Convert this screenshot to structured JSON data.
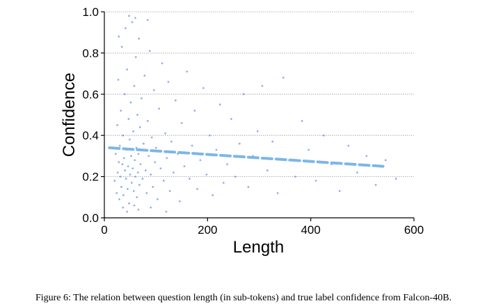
{
  "caption": "Figure 6: The relation between question length (in sub-tokens) and true label confidence from Falcon-40B.",
  "chart_data": {
    "type": "scatter",
    "title": "",
    "xlabel": "Length",
    "ylabel": "Confidence",
    "xlim": [
      0,
      600
    ],
    "ylim": [
      0,
      1.0
    ],
    "xticks": [
      0,
      200,
      400,
      600
    ],
    "xtick_labels": [
      "0",
      "200",
      "400",
      "600"
    ],
    "yticks": [
      0,
      0.2,
      0.4,
      0.6,
      0.8,
      1.0
    ],
    "ytick_labels": [
      "0.0",
      "0.2",
      "0.4",
      "0.6",
      "0.8",
      "1.0"
    ],
    "grid": "horizontal dotted",
    "point_color": "#3a6fd8",
    "trend_color": "#7db6e6",
    "trend_line": {
      "style": "dashed",
      "x": [
        10,
        540
      ],
      "y": [
        0.34,
        0.25
      ]
    },
    "points": [
      [
        20,
        0.18
      ],
      [
        22,
        0.31
      ],
      [
        24,
        0.12
      ],
      [
        25,
        0.45
      ],
      [
        26,
        0.22
      ],
      [
        27,
        0.67
      ],
      [
        28,
        0.27
      ],
      [
        29,
        0.09
      ],
      [
        30,
        0.35
      ],
      [
        31,
        0.2
      ],
      [
        32,
        0.52
      ],
      [
        33,
        0.15
      ],
      [
        34,
        0.83
      ],
      [
        35,
        0.26
      ],
      [
        36,
        0.4
      ],
      [
        37,
        0.11
      ],
      [
        38,
        0.29
      ],
      [
        39,
        0.6
      ],
      [
        40,
        0.23
      ],
      [
        41,
        0.92
      ],
      [
        42,
        0.19
      ],
      [
        43,
        0.33
      ],
      [
        44,
        0.72
      ],
      [
        45,
        0.14
      ],
      [
        46,
        0.25
      ],
      [
        47,
        0.48
      ],
      [
        48,
        0.07
      ],
      [
        49,
        0.38
      ],
      [
        50,
        0.21
      ],
      [
        51,
        0.56
      ],
      [
        52,
        0.3
      ],
      [
        53,
        0.17
      ],
      [
        54,
        0.95
      ],
      [
        55,
        0.24
      ],
      [
        56,
        0.42
      ],
      [
        57,
        0.13
      ],
      [
        58,
        0.64
      ],
      [
        59,
        0.28
      ],
      [
        60,
        0.2
      ],
      [
        61,
        0.78
      ],
      [
        62,
        0.34
      ],
      [
        63,
        0.1
      ],
      [
        64,
        0.5
      ],
      [
        65,
        0.22
      ],
      [
        66,
        0.31
      ],
      [
        67,
        0.87
      ],
      [
        68,
        0.16
      ],
      [
        69,
        0.44
      ],
      [
        70,
        0.26
      ],
      [
        72,
        0.58
      ],
      [
        74,
        0.19
      ],
      [
        76,
        0.36
      ],
      [
        78,
        0.69
      ],
      [
        80,
        0.23
      ],
      [
        82,
        0.12
      ],
      [
        84,
        0.47
      ],
      [
        86,
        0.3
      ],
      [
        88,
        0.81
      ],
      [
        90,
        0.21
      ],
      [
        92,
        0.39
      ],
      [
        94,
        0.15
      ],
      [
        96,
        0.62
      ],
      [
        98,
        0.27
      ],
      [
        100,
        0.34
      ],
      [
        103,
        0.09
      ],
      [
        106,
        0.53
      ],
      [
        109,
        0.24
      ],
      [
        112,
        0.75
      ],
      [
        115,
        0.18
      ],
      [
        118,
        0.41
      ],
      [
        121,
        0.29
      ],
      [
        124,
        0.66
      ],
      [
        127,
        0.13
      ],
      [
        130,
        0.37
      ],
      [
        134,
        0.22
      ],
      [
        138,
        0.57
      ],
      [
        142,
        0.31
      ],
      [
        146,
        0.08
      ],
      [
        150,
        0.46
      ],
      [
        155,
        0.25
      ],
      [
        160,
        0.71
      ],
      [
        165,
        0.19
      ],
      [
        170,
        0.35
      ],
      [
        175,
        0.52
      ],
      [
        180,
        0.14
      ],
      [
        186,
        0.28
      ],
      [
        192,
        0.63
      ],
      [
        198,
        0.21
      ],
      [
        204,
        0.4
      ],
      [
        210,
        0.11
      ],
      [
        217,
        0.33
      ],
      [
        224,
        0.55
      ],
      [
        231,
        0.17
      ],
      [
        238,
        0.26
      ],
      [
        246,
        0.48
      ],
      [
        254,
        0.2
      ],
      [
        262,
        0.36
      ],
      [
        270,
        0.6
      ],
      [
        279,
        0.15
      ],
      [
        288,
        0.3
      ],
      [
        297,
        0.42
      ],
      [
        306,
        0.64
      ],
      [
        316,
        0.23
      ],
      [
        326,
        0.37
      ],
      [
        336,
        0.12
      ],
      [
        347,
        0.68
      ],
      [
        358,
        0.28
      ],
      [
        370,
        0.2
      ],
      [
        383,
        0.47
      ],
      [
        396,
        0.33
      ],
      [
        410,
        0.18
      ],
      [
        425,
        0.4
      ],
      [
        440,
        0.26
      ],
      [
        456,
        0.13
      ],
      [
        473,
        0.35
      ],
      [
        490,
        0.22
      ],
      [
        508,
        0.3
      ],
      [
        526,
        0.16
      ],
      [
        545,
        0.28
      ],
      [
        565,
        0.19
      ],
      [
        36,
        0.05
      ],
      [
        44,
        0.03
      ],
      [
        58,
        0.06
      ],
      [
        66,
        0.04
      ],
      [
        90,
        0.05
      ],
      [
        120,
        0.03
      ],
      [
        48,
        0.98
      ],
      [
        60,
        0.97
      ],
      [
        84,
        0.96
      ],
      [
        28,
        0.88
      ]
    ]
  }
}
